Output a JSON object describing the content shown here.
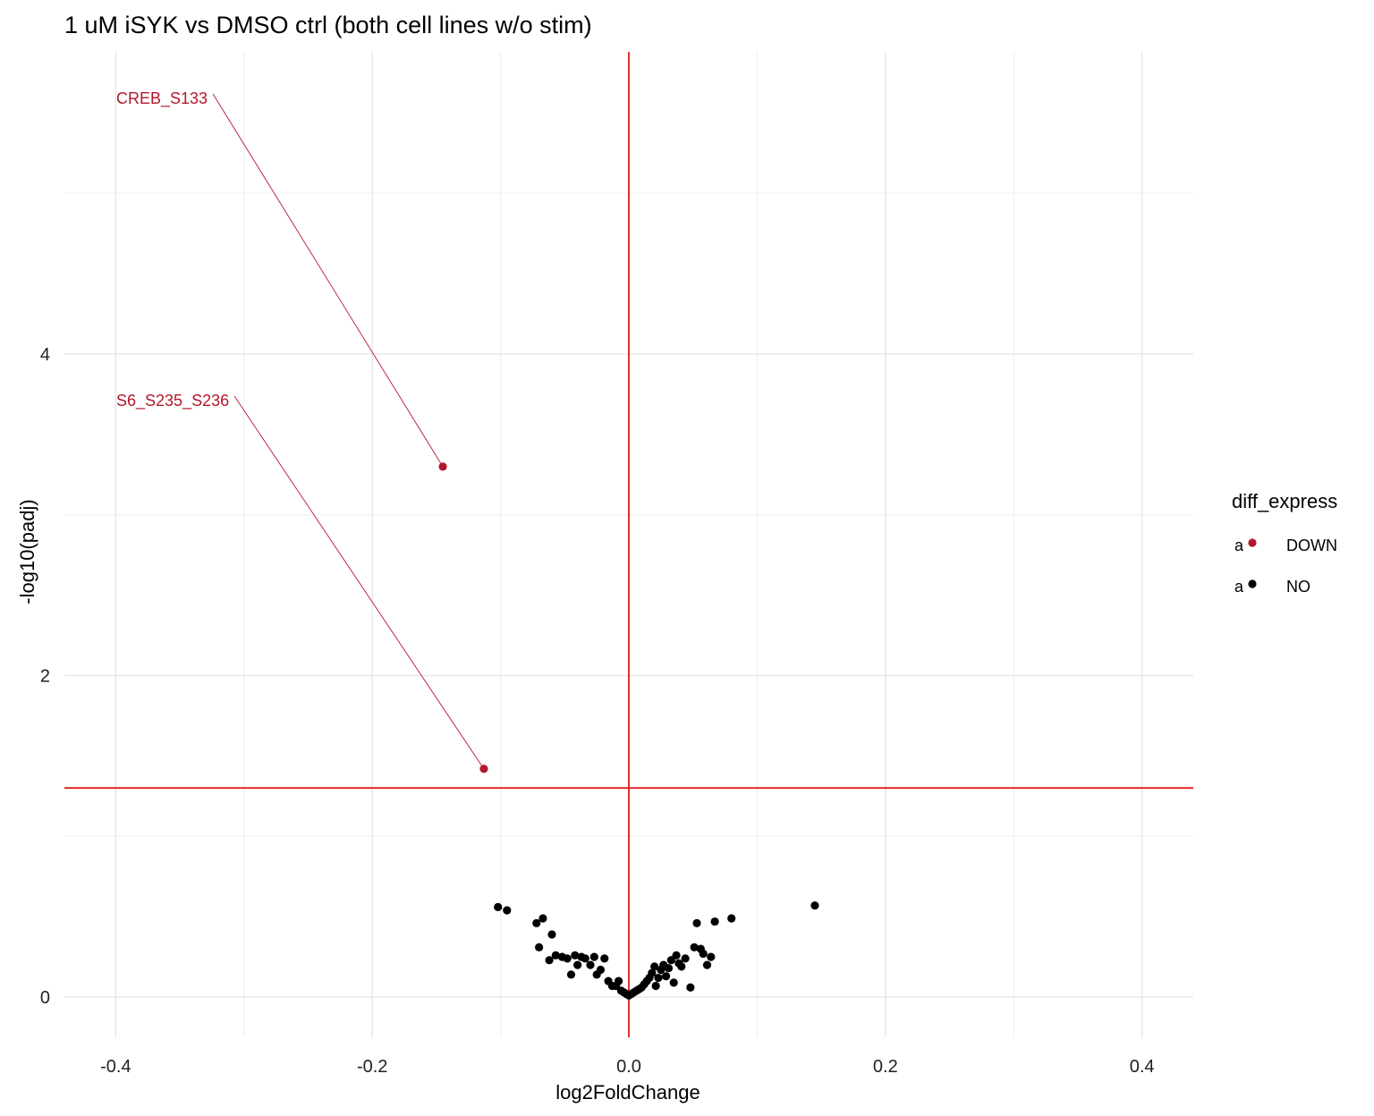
{
  "chart_data": {
    "type": "scatter",
    "title": "1 uM iSYK vs DMSO ctrl (both cell lines w/o stim)",
    "xlabel": "log2FoldChange",
    "ylabel": "-log10(padj)",
    "xlim": [
      -0.44,
      0.44
    ],
    "ylim": [
      -0.25,
      5.88
    ],
    "x_ticks": [
      -0.4,
      -0.2,
      0.0,
      0.2,
      0.4
    ],
    "x_tick_labels": [
      "-0.4",
      "-0.2",
      "0.0",
      "0.2",
      "0.4"
    ],
    "y_ticks": [
      0,
      2,
      4
    ],
    "y_tick_labels": [
      "0",
      "2",
      "4"
    ],
    "grid": true,
    "threshold_lines": {
      "vertical_x": 0.0,
      "horizontal_y": 1.301,
      "color": "#e31a1c"
    },
    "legend": {
      "title": "diff_express",
      "position": "right",
      "key_glyph": "a",
      "entries": [
        {
          "name": "DOWN",
          "color": "#b2182b"
        },
        {
          "name": "NO",
          "color": "#000000"
        }
      ]
    },
    "series": [
      {
        "name": "DOWN",
        "color": "#b2182b",
        "points": [
          {
            "x": -0.145,
            "y": 3.3,
            "label": "CREB_S133"
          },
          {
            "x": -0.113,
            "y": 1.42,
            "label": "S6_S235_S236"
          }
        ]
      },
      {
        "name": "NO",
        "color": "#000000",
        "points": [
          [
            -0.102,
            0.56
          ],
          [
            -0.095,
            0.54
          ],
          [
            -0.072,
            0.46
          ],
          [
            -0.067,
            0.49
          ],
          [
            -0.07,
            0.31
          ],
          [
            -0.06,
            0.39
          ],
          [
            -0.062,
            0.23
          ],
          [
            -0.057,
            0.26
          ],
          [
            -0.052,
            0.25
          ],
          [
            -0.048,
            0.24
          ],
          [
            -0.045,
            0.14
          ],
          [
            -0.042,
            0.26
          ],
          [
            -0.04,
            0.2
          ],
          [
            -0.037,
            0.25
          ],
          [
            -0.034,
            0.24
          ],
          [
            -0.03,
            0.2
          ],
          [
            -0.027,
            0.25
          ],
          [
            -0.025,
            0.14
          ],
          [
            -0.022,
            0.17
          ],
          [
            -0.019,
            0.24
          ],
          [
            -0.016,
            0.1
          ],
          [
            -0.013,
            0.07
          ],
          [
            -0.01,
            0.07
          ],
          [
            -0.008,
            0.1
          ],
          [
            -0.006,
            0.04
          ],
          [
            -0.004,
            0.03
          ],
          [
            -0.002,
            0.02
          ],
          [
            0.0,
            0.01
          ],
          [
            0.002,
            0.02
          ],
          [
            0.004,
            0.03
          ],
          [
            0.006,
            0.04
          ],
          [
            0.008,
            0.05
          ],
          [
            0.01,
            0.06
          ],
          [
            0.012,
            0.08
          ],
          [
            0.014,
            0.1
          ],
          [
            0.016,
            0.12
          ],
          [
            0.018,
            0.15
          ],
          [
            0.02,
            0.19
          ],
          [
            0.021,
            0.07
          ],
          [
            0.023,
            0.12
          ],
          [
            0.025,
            0.17
          ],
          [
            0.027,
            0.2
          ],
          [
            0.029,
            0.13
          ],
          [
            0.031,
            0.18
          ],
          [
            0.033,
            0.23
          ],
          [
            0.035,
            0.09
          ],
          [
            0.037,
            0.26
          ],
          [
            0.039,
            0.21
          ],
          [
            0.041,
            0.19
          ],
          [
            0.044,
            0.24
          ],
          [
            0.048,
            0.06
          ],
          [
            0.051,
            0.31
          ],
          [
            0.053,
            0.46
          ],
          [
            0.056,
            0.3
          ],
          [
            0.058,
            0.27
          ],
          [
            0.061,
            0.2
          ],
          [
            0.064,
            0.25
          ],
          [
            0.067,
            0.47
          ],
          [
            0.08,
            0.49
          ],
          [
            0.145,
            0.57
          ]
        ]
      }
    ]
  }
}
